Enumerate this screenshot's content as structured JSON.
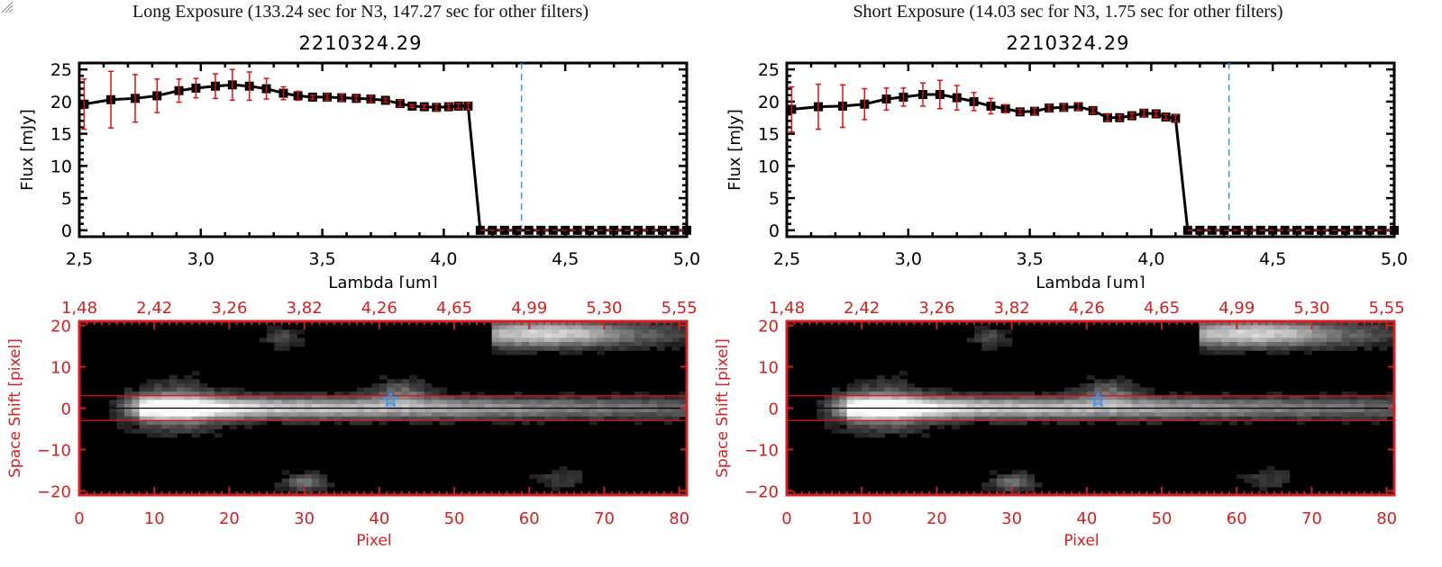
{
  "panels": [
    {
      "id": "long",
      "suptitle": "Long Exposure (133.24 sec for N3, 147.27 sec for other filters)",
      "title": "2210324.29"
    },
    {
      "id": "short",
      "suptitle": "Short Exposure (14.03 sec for N3, 1.75 sec for other filters)",
      "title": "2210324.29"
    }
  ],
  "colors": {
    "axis_red": "#d42020",
    "errorbar_red": "#e01010",
    "marker": "#000000",
    "vline_blue": "#3399ee",
    "star_blue": "#3399ff",
    "image_bg": "#000000"
  },
  "chart_data": [
    {
      "type": "line",
      "panel": "long",
      "title": "2210324.29",
      "xlabel": "Lambda [um]",
      "ylabel": "Flux [mJy]",
      "xlim": [
        2.5,
        5.0
      ],
      "ylim": [
        -1,
        26
      ],
      "xticks": [
        "2.5",
        "3.0",
        "3.5",
        "4.0",
        "4.5",
        "5.0"
      ],
      "yticks": [
        "0",
        "5",
        "10",
        "15",
        "20",
        "25"
      ],
      "vline_x": 4.32,
      "zero_line": true,
      "series": [
        {
          "name": "flux",
          "x": [
            2.52,
            2.63,
            2.73,
            2.82,
            2.91,
            2.98,
            3.06,
            3.13,
            3.2,
            3.27,
            3.34,
            3.4,
            3.46,
            3.52,
            3.58,
            3.64,
            3.7,
            3.76,
            3.82,
            3.87,
            3.92,
            3.97,
            4.02,
            4.06,
            4.1,
            4.15,
            4.2,
            4.25,
            4.3,
            4.35,
            4.4,
            4.45,
            4.5,
            4.55,
            4.6,
            4.65,
            4.7,
            4.75,
            4.8,
            4.85,
            4.9,
            4.95,
            5.0
          ],
          "y": [
            19.6,
            20.3,
            20.5,
            20.9,
            21.7,
            22.1,
            22.4,
            22.6,
            22.4,
            22.0,
            21.3,
            20.9,
            20.7,
            20.7,
            20.6,
            20.5,
            20.4,
            20.2,
            19.7,
            19.3,
            19.2,
            19.1,
            19.2,
            19.3,
            19.3,
            0,
            0,
            0,
            0,
            0,
            0,
            0,
            0,
            0,
            0,
            0,
            0,
            0,
            0,
            0,
            0,
            0,
            0
          ],
          "err": [
            3.9,
            4.4,
            3.7,
            2.6,
            1.8,
            1.5,
            1.9,
            2.4,
            2.2,
            1.6,
            1.0,
            0.7,
            0.3,
            0.5,
            0.5,
            0.4,
            0.5,
            0.3,
            0.5,
            0.2,
            0.3,
            0.5,
            0.4,
            0.4,
            0.5,
            0,
            0,
            0,
            0,
            0,
            0,
            0,
            0,
            0,
            0,
            0,
            0,
            0,
            0,
            0,
            0,
            0,
            0
          ]
        }
      ]
    },
    {
      "type": "line",
      "panel": "short",
      "title": "2210324.29",
      "xlabel": "Lambda [um]",
      "ylabel": "Flux [mJy]",
      "xlim": [
        2.5,
        5.0
      ],
      "ylim": [
        -1,
        26
      ],
      "xticks": [
        "2.5",
        "3.0",
        "3.5",
        "4.0",
        "4.5",
        "5.0"
      ],
      "yticks": [
        "0",
        "5",
        "10",
        "15",
        "20",
        "25"
      ],
      "vline_x": 4.32,
      "zero_line": true,
      "series": [
        {
          "name": "flux",
          "x": [
            2.52,
            2.63,
            2.73,
            2.82,
            2.91,
            2.98,
            3.06,
            3.13,
            3.2,
            3.27,
            3.34,
            3.4,
            3.46,
            3.52,
            3.58,
            3.64,
            3.7,
            3.76,
            3.82,
            3.87,
            3.92,
            3.97,
            4.02,
            4.06,
            4.1,
            4.15,
            4.2,
            4.25,
            4.3,
            4.35,
            4.4,
            4.45,
            4.5,
            4.55,
            4.6,
            4.65,
            4.7,
            4.75,
            4.8,
            4.85,
            4.9,
            4.95,
            5.0
          ],
          "y": [
            18.8,
            19.2,
            19.3,
            19.6,
            20.4,
            20.7,
            21.1,
            21.1,
            20.6,
            20.0,
            19.3,
            18.9,
            18.4,
            18.5,
            19.0,
            19.1,
            19.2,
            18.6,
            17.5,
            17.5,
            17.8,
            18.2,
            18.1,
            17.6,
            17.4,
            0,
            0,
            0,
            0,
            0,
            0,
            0,
            0,
            0,
            0,
            0,
            0,
            0,
            0,
            0,
            0,
            0,
            0
          ],
          "err": [
            3.5,
            3.5,
            3.3,
            2.4,
            1.7,
            1.4,
            1.8,
            2.2,
            1.9,
            1.4,
            1.2,
            0.6,
            0.4,
            0.5,
            0.5,
            0.5,
            0.5,
            0.4,
            0.5,
            0.4,
            0.4,
            0.5,
            0.4,
            0.4,
            0.5,
            0,
            0,
            0,
            0,
            0,
            0,
            0,
            0,
            0,
            0,
            0,
            0,
            0,
            0,
            0,
            0,
            0,
            0
          ]
        }
      ]
    },
    {
      "type": "heatmap",
      "panel": "long",
      "xlabel": "Pixel",
      "ylabel": "Space Shift [pixel]",
      "xlim": [
        0,
        81
      ],
      "ylim": [
        -21,
        21
      ],
      "xticks": [
        "0",
        "10",
        "20",
        "30",
        "40",
        "50",
        "60",
        "70",
        "80"
      ],
      "yticks": [
        "-20",
        "-10",
        "0",
        "10",
        "20"
      ],
      "top_xticks": [
        "1.48",
        "2.42",
        "3.26",
        "3.82",
        "4.26",
        "4.65",
        "4.99",
        "5.30",
        "5.55"
      ],
      "aperture_lines_y": [
        3,
        -3
      ],
      "center_line_y": 0,
      "star_marker": {
        "x": 41.5,
        "y": 2
      }
    },
    {
      "type": "heatmap",
      "panel": "short",
      "xlabel": "Pixel",
      "ylabel": "Space Shift [pixel]",
      "xlim": [
        0,
        81
      ],
      "ylim": [
        -21,
        21
      ],
      "xticks": [
        "0",
        "10",
        "20",
        "30",
        "40",
        "50",
        "60",
        "70",
        "80"
      ],
      "yticks": [
        "-20",
        "-10",
        "0",
        "10",
        "20"
      ],
      "top_xticks": [
        "1.48",
        "2.42",
        "3.26",
        "3.82",
        "4.26",
        "4.65",
        "4.99",
        "5.30",
        "5.55"
      ],
      "aperture_lines_y": [
        3,
        -3
      ],
      "center_line_y": 0,
      "star_marker": {
        "x": 41.5,
        "y": 2
      }
    }
  ]
}
